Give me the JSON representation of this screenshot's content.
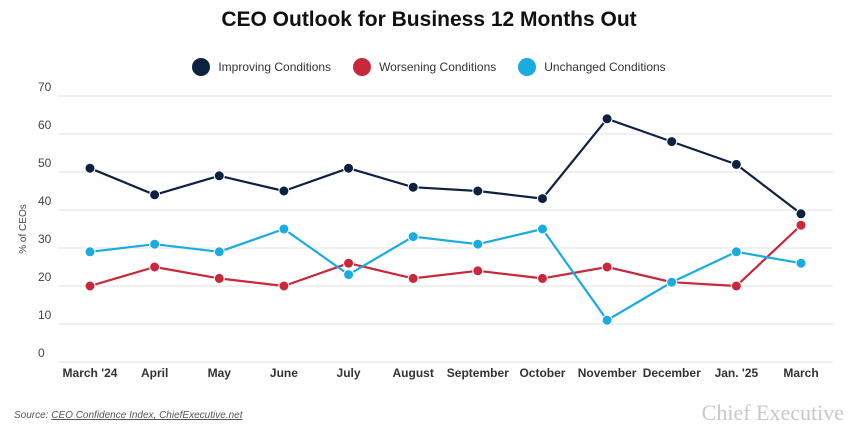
{
  "page": {
    "source_prefix": "Source: ",
    "source_link": "CEO Confidence Index, ChiefExecutive.net",
    "brand": "Chief Executive"
  },
  "chart_data": {
    "type": "line",
    "title": "CEO Outlook for Business 12 Months Out",
    "ylabel": "% of CEOs",
    "xlabel": "",
    "ylim": [
      0,
      70
    ],
    "yticks": [
      0,
      10,
      20,
      30,
      40,
      50,
      60,
      70
    ],
    "grid": true,
    "legend": "top-center",
    "categories": [
      "March '24",
      "April",
      "May",
      "June",
      "July",
      "August",
      "September",
      "October",
      "November",
      "December",
      "Jan. '25",
      "March"
    ],
    "series": [
      {
        "name": "Improving Conditions",
        "color": "#0d2240",
        "values": [
          51,
          44,
          49,
          45,
          51,
          46,
          45,
          43,
          64,
          58,
          52,
          39
        ]
      },
      {
        "name": "Worsening Conditions",
        "color": "#c8283a",
        "values": [
          20,
          25,
          22,
          20,
          26,
          22,
          24,
          22,
          25,
          21,
          20,
          36
        ]
      },
      {
        "name": "Unchanged Conditions",
        "color": "#1aabe0",
        "values": [
          29,
          31,
          29,
          35,
          23,
          33,
          31,
          35,
          11,
          21,
          29,
          26
        ]
      }
    ]
  }
}
